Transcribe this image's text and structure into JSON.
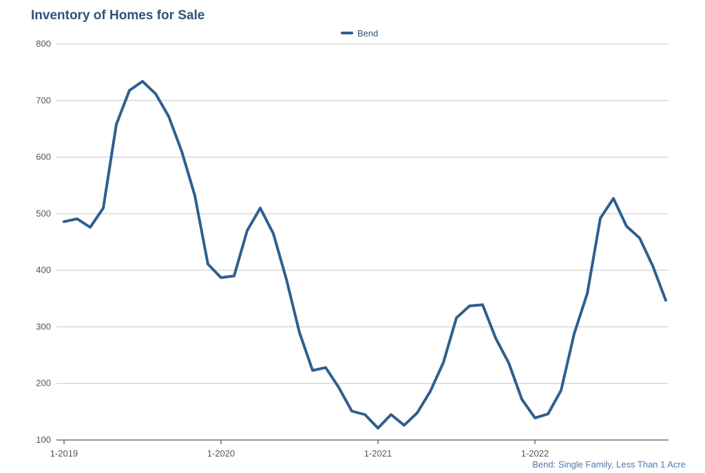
{
  "chart_data": {
    "type": "line",
    "title": "Inventory of Homes for Sale",
    "xlabel": "",
    "ylabel": "",
    "footnote": "Bend: Single Family, Less Than 1 Acre",
    "legend_position": "top-center",
    "grid": true,
    "ylim": [
      100,
      800
    ],
    "yticks": [
      100,
      200,
      300,
      400,
      500,
      600,
      700,
      800
    ],
    "xtick_labels": [
      "1-2019",
      "1-2020",
      "1-2021",
      "1-2022"
    ],
    "xtick_indices": [
      0,
      12,
      24,
      36
    ],
    "x": [
      "1-2019",
      "2-2019",
      "3-2019",
      "4-2019",
      "5-2019",
      "6-2019",
      "7-2019",
      "8-2019",
      "9-2019",
      "10-2019",
      "11-2019",
      "12-2019",
      "1-2020",
      "2-2020",
      "3-2020",
      "4-2020",
      "5-2020",
      "6-2020",
      "7-2020",
      "8-2020",
      "9-2020",
      "10-2020",
      "11-2020",
      "12-2020",
      "1-2021",
      "2-2021",
      "3-2021",
      "4-2021",
      "5-2021",
      "6-2021",
      "7-2021",
      "8-2021",
      "9-2021",
      "10-2021",
      "11-2021",
      "12-2021",
      "1-2022",
      "2-2022",
      "3-2022",
      "4-2022",
      "5-2022",
      "6-2022",
      "7-2022",
      "8-2022",
      "9-2022",
      "10-2022",
      "11-2022"
    ],
    "series": [
      {
        "name": "Bend",
        "color": "#2e5f8f",
        "values": [
          486,
          491,
          476,
          510,
          658,
          718,
          734,
          712,
          672,
          610,
          532,
          411,
          387,
          390,
          470,
          510,
          465,
          384,
          290,
          223,
          228,
          193,
          151,
          145,
          121,
          145,
          126,
          148,
          186,
          237,
          316,
          337,
          339,
          280,
          236,
          172,
          139,
          146,
          188,
          288,
          359,
          492,
          527,
          478,
          457,
          408,
          347
        ]
      }
    ]
  }
}
